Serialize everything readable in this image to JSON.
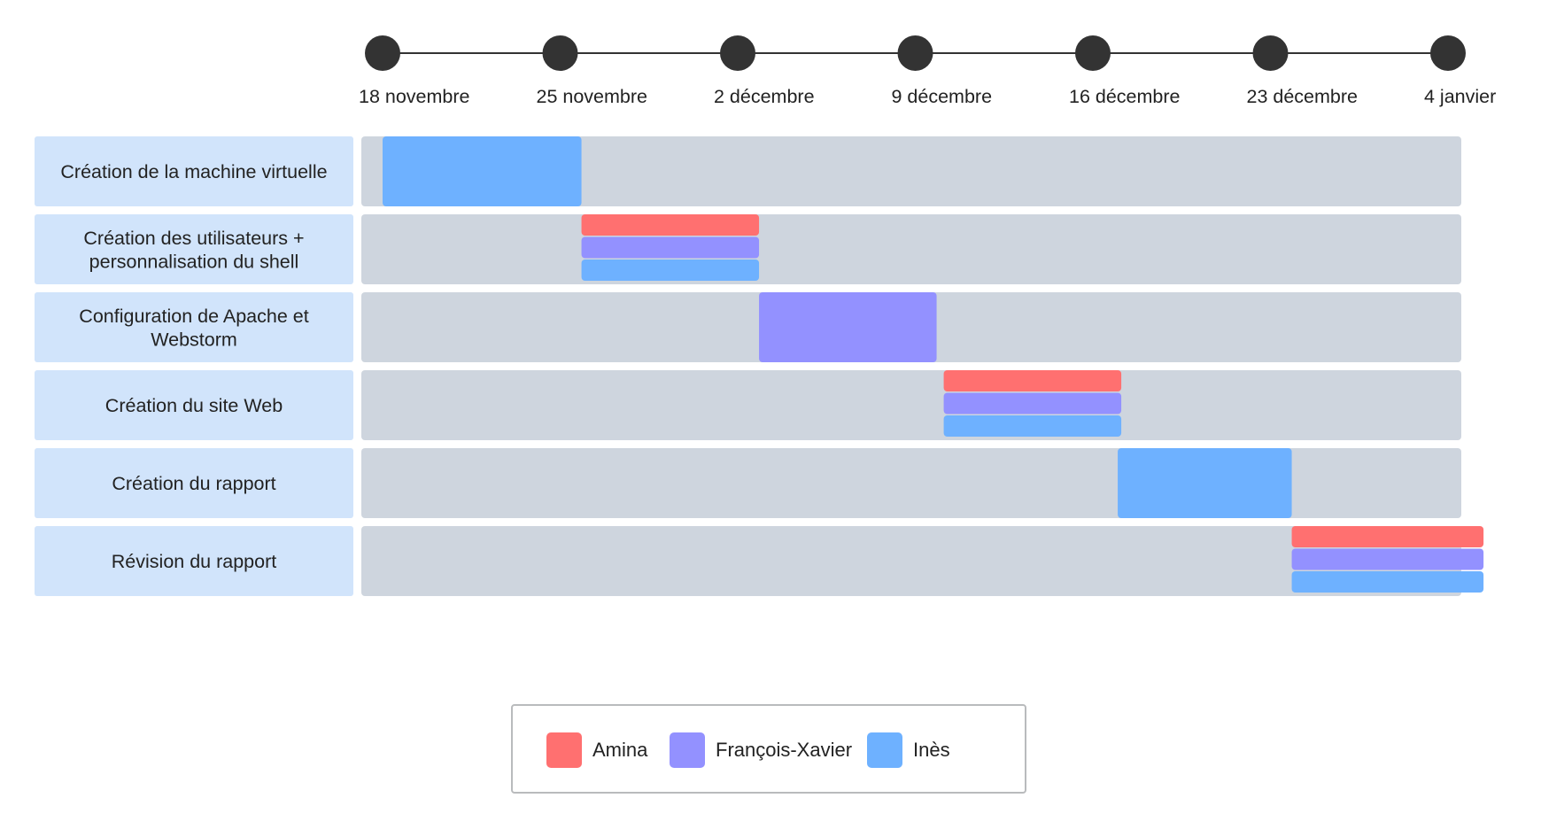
{
  "chart_data": {
    "type": "gantt",
    "title": "",
    "milestones": [
      "18 novembre",
      "25 novembre",
      "2 décembre",
      "9 décembre",
      "16 décembre",
      "23 décembre",
      "4 janvier"
    ],
    "tasks": [
      {
        "name": "Création de la machine virtuelle",
        "label_lines": [
          "Création de la machine virtuelle"
        ],
        "start": 0,
        "end": 1.12,
        "assignees": [
          "Inès"
        ]
      },
      {
        "name": "Création des utilisateurs + personnalisation du shell",
        "label_lines": [
          "Création des utilisateurs +",
          "personnalisation du shell"
        ],
        "start": 1.12,
        "end": 2.12,
        "assignees": [
          "Amina",
          "François-Xavier",
          "Inès"
        ]
      },
      {
        "name": "Configuration de Apache et Webstorm",
        "label_lines": [
          "Configuration de Apache et",
          "Webstorm"
        ],
        "start": 2.12,
        "end": 3.12,
        "assignees": [
          "François-Xavier"
        ]
      },
      {
        "name": "Création du site Web",
        "label_lines": [
          "Création du site Web"
        ],
        "start": 3.16,
        "end": 4.16,
        "assignees": [
          "Amina",
          "François-Xavier",
          "Inès"
        ]
      },
      {
        "name": "Création du rapport",
        "label_lines": [
          "Création du rapport"
        ],
        "start": 4.14,
        "end": 5.12,
        "assignees": [
          "Inès"
        ]
      },
      {
        "name": "Révision du rapport",
        "label_lines": [
          "Révision du rapport"
        ],
        "start": 5.12,
        "end": 6.2,
        "assignees": [
          "Amina",
          "François-Xavier",
          "Inès"
        ]
      }
    ],
    "legend": [
      {
        "name": "Amina",
        "color": "#ff7070"
      },
      {
        "name": "François-Xavier",
        "color": "#9391ff"
      },
      {
        "name": "Inès",
        "color": "#6eb1ff"
      }
    ],
    "legend_position": "bottom-center",
    "colors": {
      "task_label_bg": "#d1e4fb",
      "track_bg": "#ced5de",
      "milestone_dot": "#333333",
      "timeline_line": "#333333"
    }
  }
}
